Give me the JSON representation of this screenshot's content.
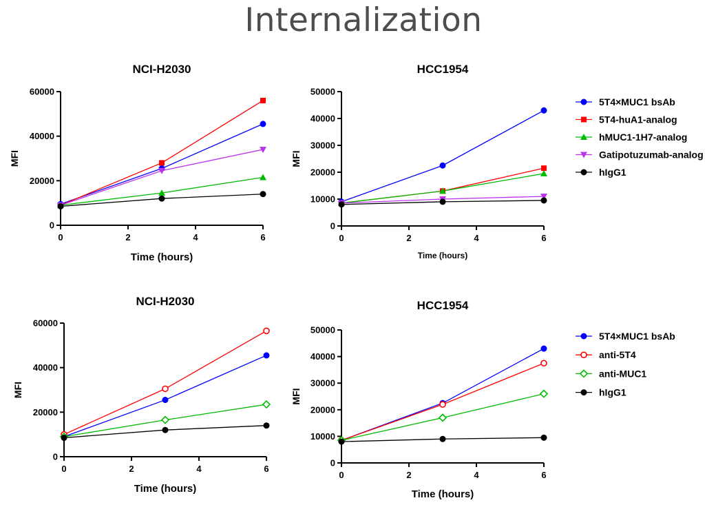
{
  "page": {
    "title": "Internalization"
  },
  "chart_data": [
    {
      "type": "line",
      "title": "NCI-H2030",
      "xlabel": "Time (hours)",
      "ylabel": "MFI",
      "x": [
        0,
        3,
        6
      ],
      "xlim": [
        0,
        6
      ],
      "ylim": [
        0,
        60000
      ],
      "xticks": [
        "0",
        "2",
        "4",
        "6"
      ],
      "yticks": [
        "0",
        "20000",
        "40000",
        "60000"
      ],
      "series": [
        {
          "name": "5T4×MUC1 bsAb",
          "color": "#0000ff",
          "marker": "circle",
          "values": [
            9500,
            25500,
            45500
          ]
        },
        {
          "name": "5T4-huA1-analog",
          "color": "#ff0000",
          "marker": "square",
          "values": [
            9000,
            28000,
            56000
          ]
        },
        {
          "name": "hMUC1-1H7-analog",
          "color": "#00bb00",
          "marker": "triangle-up",
          "values": [
            9000,
            14500,
            21500
          ]
        },
        {
          "name": "Gatipotuzumab-analog",
          "color": "#bb33ee",
          "marker": "triangle-down",
          "values": [
            9000,
            24500,
            34000
          ]
        },
        {
          "name": "hIgG1",
          "color": "#000000",
          "marker": "circle",
          "values": [
            8500,
            12000,
            14000
          ]
        }
      ]
    },
    {
      "type": "line",
      "title": "HCC1954",
      "xlabel": "Time (hours)",
      "ylabel": "MFI",
      "x": [
        0,
        3,
        6
      ],
      "xlim": [
        0,
        6
      ],
      "ylim": [
        0,
        50000
      ],
      "xticks": [
        "0",
        "2",
        "4",
        "6"
      ],
      "yticks": [
        "0",
        "10000",
        "20000",
        "30000",
        "40000",
        "50000"
      ],
      "legend": "right",
      "series": [
        {
          "name": "5T4×MUC1 bsAb",
          "color": "#0000ff",
          "marker": "circle",
          "values": [
            9000,
            22500,
            43000
          ]
        },
        {
          "name": "5T4-huA1-analog",
          "color": "#ff0000",
          "marker": "square",
          "values": [
            8500,
            13000,
            21500
          ]
        },
        {
          "name": "hMUC1-1H7-analog",
          "color": "#00bb00",
          "marker": "triangle-up",
          "values": [
            8500,
            13000,
            19500
          ]
        },
        {
          "name": "Gatipotuzumab-analog",
          "color": "#bb33ee",
          "marker": "triangle-down",
          "values": [
            8500,
            10000,
            11000
          ]
        },
        {
          "name": "hIgG1",
          "color": "#000000",
          "marker": "circle",
          "values": [
            8000,
            9000,
            9500
          ]
        }
      ]
    },
    {
      "type": "line",
      "title": "NCI-H2030",
      "xlabel": "Time (hours)",
      "ylabel": "MFI",
      "x": [
        0,
        3,
        6
      ],
      "xlim": [
        0,
        6
      ],
      "ylim": [
        0,
        60000
      ],
      "xticks": [
        "0",
        "2",
        "4",
        "6"
      ],
      "yticks": [
        "0",
        "20000",
        "40000",
        "60000"
      ],
      "series": [
        {
          "name": "5T4×MUC1 bsAb",
          "color": "#0000ff",
          "marker": "circle",
          "values": [
            9000,
            25500,
            45500
          ]
        },
        {
          "name": "anti-5T4",
          "color": "#ff0000",
          "marker": "circle-open",
          "values": [
            10000,
            30500,
            56500
          ]
        },
        {
          "name": "anti-MUC1",
          "color": "#00bb00",
          "marker": "diamond-open",
          "values": [
            9000,
            16500,
            23500
          ]
        },
        {
          "name": "hIgG1",
          "color": "#000000",
          "marker": "circle",
          "values": [
            8500,
            12000,
            14000
          ]
        }
      ]
    },
    {
      "type": "line",
      "title": "HCC1954",
      "xlabel": "Time (hours)",
      "ylabel": "MFI",
      "x": [
        0,
        3,
        6
      ],
      "xlim": [
        0,
        6
      ],
      "ylim": [
        0,
        50000
      ],
      "xticks": [
        "0",
        "2",
        "4",
        "6"
      ],
      "yticks": [
        "0",
        "10000",
        "20000",
        "30000",
        "40000",
        "50000"
      ],
      "legend": "right",
      "series": [
        {
          "name": "5T4×MUC1 bsAb",
          "color": "#0000ff",
          "marker": "circle",
          "values": [
            8500,
            22500,
            43000
          ]
        },
        {
          "name": "anti-5T4",
          "color": "#ff0000",
          "marker": "circle-open",
          "values": [
            8500,
            22000,
            37500
          ]
        },
        {
          "name": "anti-MUC1",
          "color": "#00bb00",
          "marker": "diamond-open",
          "values": [
            8500,
            17000,
            26000
          ]
        },
        {
          "name": "hIgG1",
          "color": "#000000",
          "marker": "circle",
          "values": [
            8000,
            9000,
            9500
          ]
        }
      ]
    }
  ]
}
